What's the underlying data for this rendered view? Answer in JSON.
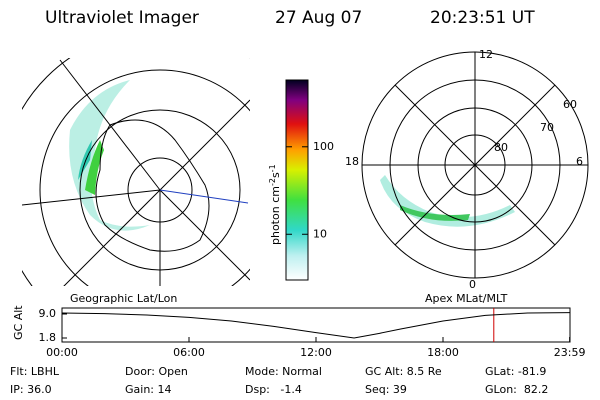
{
  "header": {
    "title": "Ultraviolet Imager",
    "date": "27 Aug 07",
    "time": "20:23:51 UT"
  },
  "colorbar": {
    "label": "photon cm",
    "exp1": "-2",
    "unit2": "s",
    "exp2": "-1",
    "log": true,
    "clim": [
      3,
      580
    ],
    "ticks": [
      10,
      100
    ]
  },
  "left_map": {
    "caption": "Geographic Lat/Lon"
  },
  "right_map": {
    "caption": "Apex MLat/MLT",
    "mlt_labels": {
      "top": "12",
      "left": "18",
      "right": "6",
      "bottom": "0"
    },
    "lat_labels": [
      "60",
      "70",
      "80"
    ]
  },
  "altitude_plot": {
    "ylabel": "GC Alt",
    "ylim": [
      0.6,
      10.8
    ],
    "xlim": [
      0,
      24
    ],
    "yticks": [
      {
        "value": 9.0,
        "label": "9.0"
      },
      {
        "value": 1.8,
        "label": "1.8"
      }
    ],
    "xticks": [
      {
        "value": 0,
        "label": "00:00"
      },
      {
        "value": 6,
        "label": "06:00"
      },
      {
        "value": 12,
        "label": "12:00"
      },
      {
        "value": 18,
        "label": "18:00"
      },
      {
        "value": 23.983,
        "label": "23:59"
      }
    ],
    "x": [
      0,
      2,
      4,
      6,
      8,
      10,
      12,
      13.8,
      15,
      16,
      18,
      20,
      22,
      23.98
    ],
    "values": [
      9.3,
      9.1,
      8.7,
      8.0,
      6.9,
      5.3,
      3.4,
      1.8,
      3.2,
      4.5,
      6.9,
      8.6,
      9.3,
      9.4
    ],
    "current_time": 20.4
  },
  "info": [
    [
      "Flt: LBHL",
      "Door: Open",
      "Mode: Normal",
      "GC Alt: 8.5 Re",
      "GLat: -81.9"
    ],
    [
      "IP: 36.0",
      "Gain: 14",
      "Dsp:   -1.4",
      "Seq: 39",
      "GLon:  82.2"
    ]
  ]
}
